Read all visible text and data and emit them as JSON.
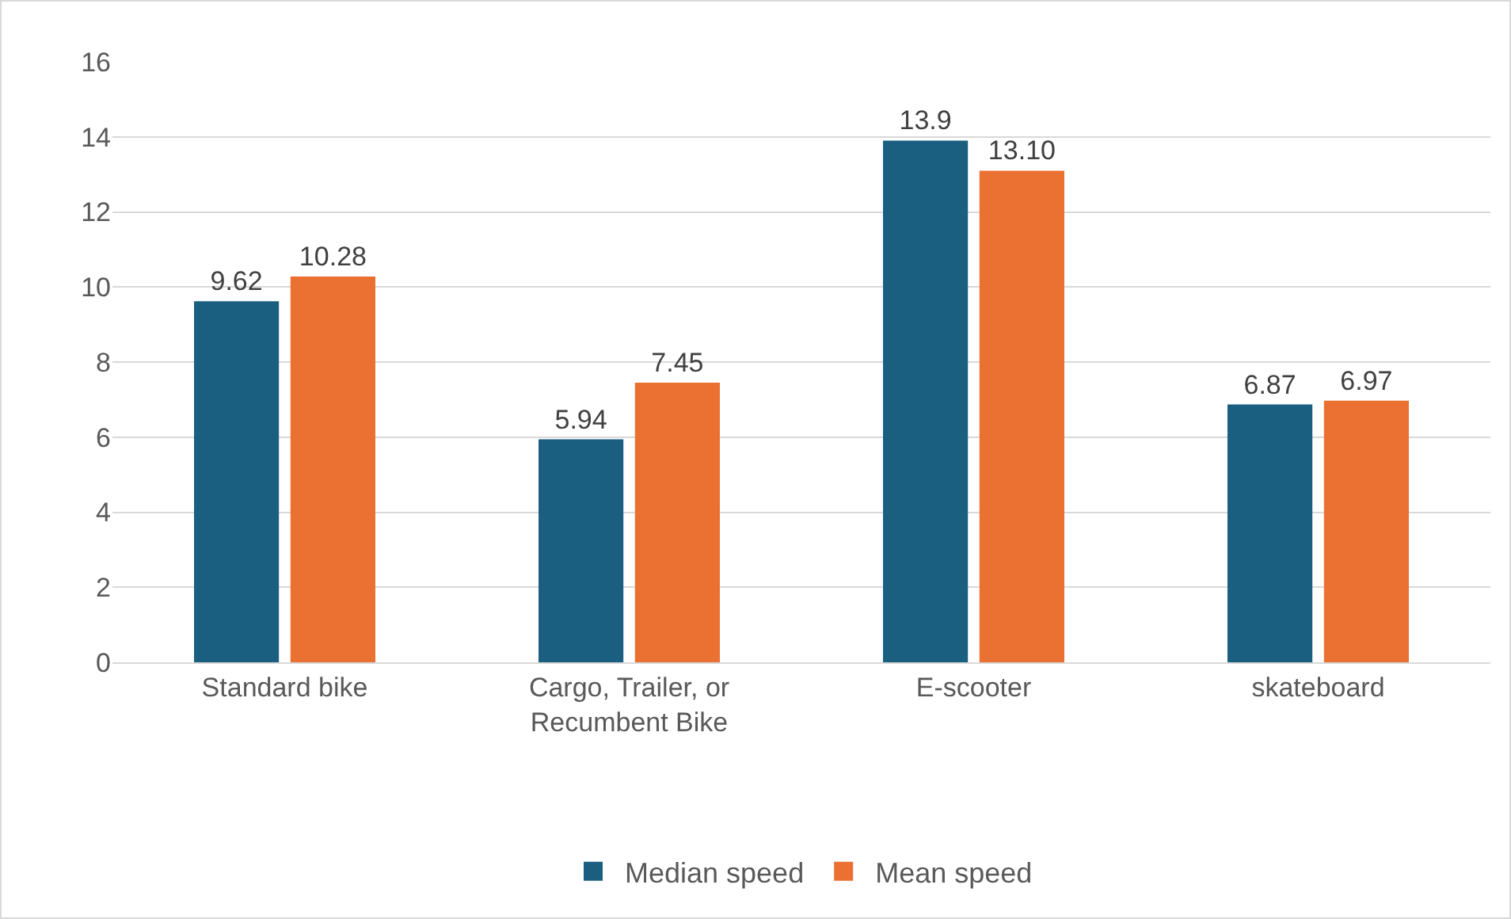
{
  "chart_data": {
    "type": "bar",
    "categories": [
      "Standard bike",
      "Cargo, Trailer, or\nRecumbent Bike",
      "E-scooter",
      "skateboard"
    ],
    "series": [
      {
        "name": "Median speed",
        "color": "#1a5f80",
        "values": [
          9.62,
          5.94,
          13.9,
          6.87
        ],
        "value_labels": [
          "9.62",
          "5.94",
          "13.9",
          "6.87"
        ]
      },
      {
        "name": "Mean speed",
        "color": "#eb7132",
        "values": [
          10.28,
          7.45,
          13.1,
          6.97
        ],
        "value_labels": [
          "10.28",
          "7.45",
          "13.10",
          "6.97"
        ]
      }
    ],
    "ylim": [
      0,
      16
    ],
    "yticks": [
      0,
      2,
      4,
      6,
      8,
      10,
      12,
      14,
      16
    ],
    "grid": "y",
    "legend": "bottom"
  }
}
